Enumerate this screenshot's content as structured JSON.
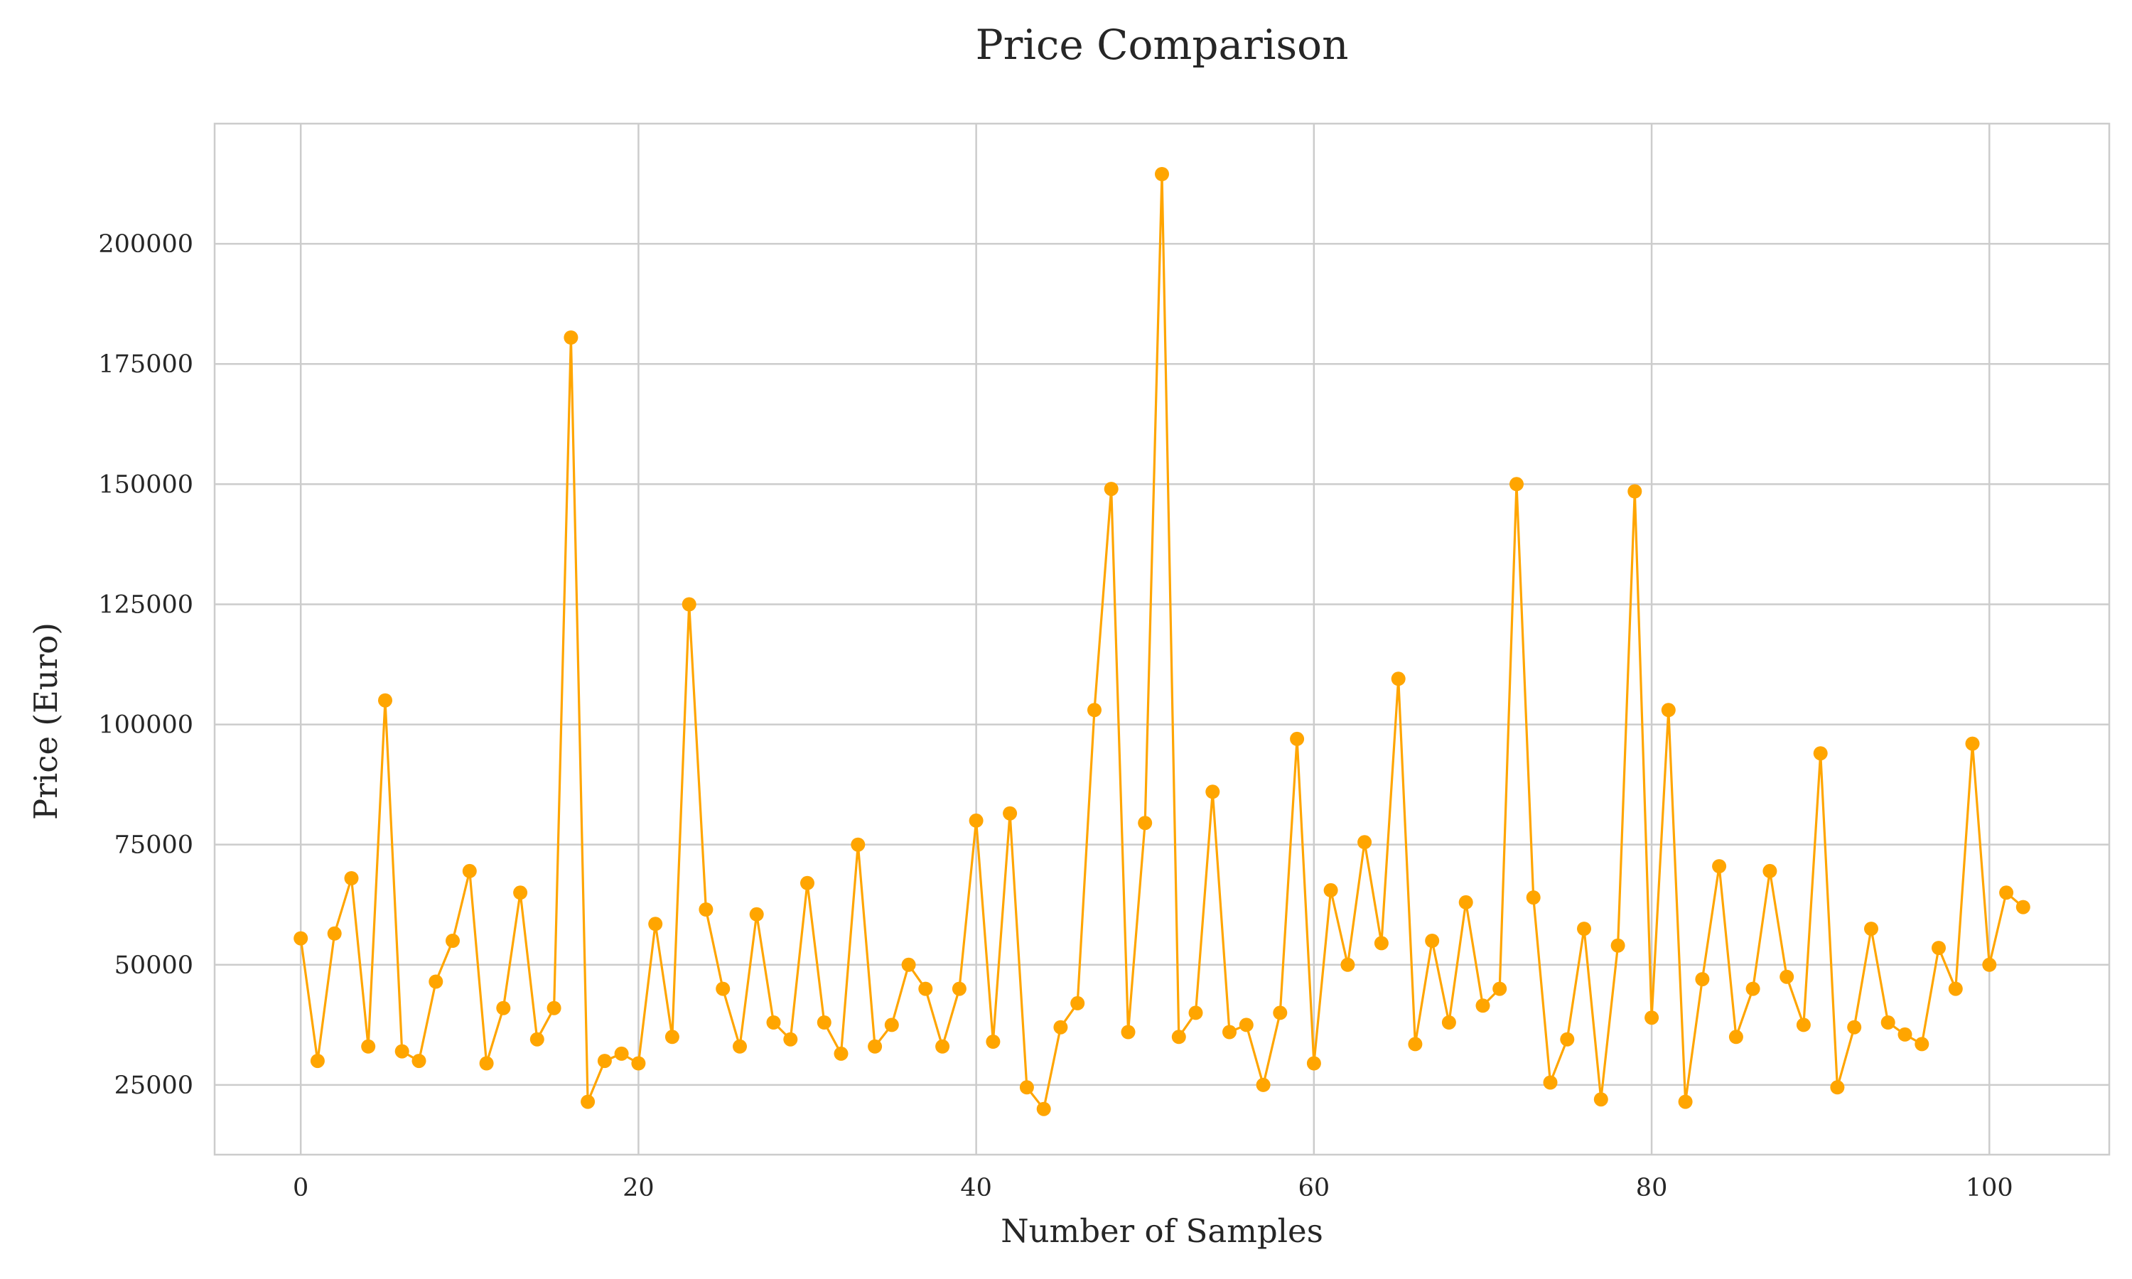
{
  "chart_data": {
    "type": "line",
    "title": "Price Comparison",
    "xlabel": "Number of Samples",
    "ylabel": "Price (Euro)",
    "xlim": [
      -5.1,
      107.1
    ],
    "ylim": [
      10500,
      225000
    ],
    "x_ticks": [
      0,
      20,
      40,
      60,
      80,
      100
    ],
    "y_ticks": [
      25000,
      50000,
      75000,
      100000,
      125000,
      150000,
      175000,
      200000
    ],
    "grid": true,
    "legend": "none",
    "colors": {
      "series": "#ffa500",
      "grid": "#cccccc",
      "text": "#262626"
    },
    "series": [
      {
        "x": [
          0,
          1,
          2,
          3,
          4,
          5,
          6,
          7,
          8,
          9,
          10,
          11,
          12,
          13,
          14,
          15,
          16,
          17,
          18,
          19,
          20,
          21,
          22,
          23,
          24,
          25,
          26,
          27,
          28,
          29,
          30,
          31,
          32,
          33,
          34,
          35,
          36,
          37,
          38,
          39,
          40,
          41,
          42,
          43,
          44,
          45,
          46,
          47,
          48,
          49,
          50,
          51,
          52,
          53,
          54,
          55,
          56,
          57,
          58,
          59,
          60,
          61,
          62,
          63,
          64,
          65,
          66,
          67,
          68,
          69,
          70,
          71,
          72,
          73,
          74,
          75,
          76,
          77,
          78,
          79,
          80,
          81,
          82,
          83,
          84,
          85,
          86,
          87,
          88,
          89,
          90,
          91,
          92,
          93,
          94,
          95,
          96,
          97,
          98,
          99,
          100,
          101,
          102
        ],
        "values": [
          55500,
          30000,
          56500,
          68000,
          33000,
          105000,
          32000,
          30000,
          46500,
          55000,
          69500,
          29500,
          41000,
          65000,
          34500,
          41000,
          180500,
          21500,
          30000,
          31500,
          29500,
          58500,
          35000,
          125000,
          61500,
          45000,
          33000,
          60500,
          38000,
          34500,
          67000,
          38000,
          31500,
          75000,
          33000,
          37500,
          50000,
          45000,
          33000,
          45000,
          80000,
          34000,
          81500,
          24500,
          20000,
          37000,
          42000,
          103000,
          149000,
          36000,
          79500,
          214500,
          35000,
          40000,
          86000,
          36000,
          37500,
          25000,
          40000,
          97000,
          29500,
          65500,
          50000,
          75500,
          54500,
          109500,
          33500,
          55000,
          38000,
          63000,
          41500,
          45000,
          150000,
          64000,
          25500,
          34500,
          57500,
          22000,
          54000,
          148500,
          39000,
          103000,
          21500,
          47000,
          70500,
          35000,
          45000,
          69500,
          47500,
          37500,
          94000,
          24500,
          37000,
          57500,
          38000,
          35500,
          33500,
          53500,
          45000,
          96000,
          50000,
          65000,
          62000
        ]
      }
    ]
  }
}
